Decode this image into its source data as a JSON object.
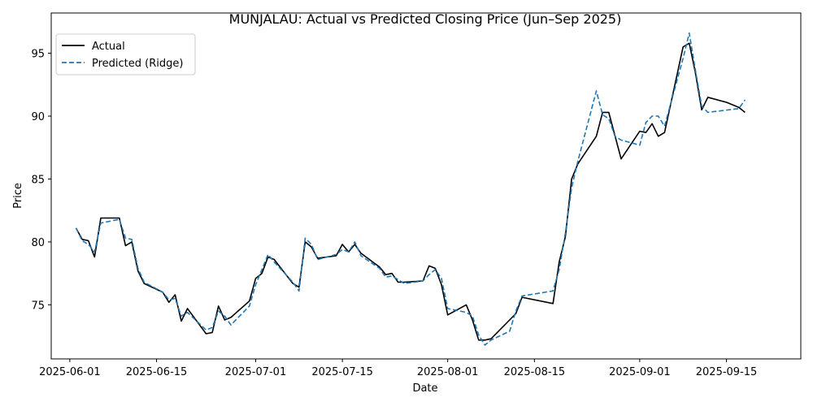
{
  "chart_data": {
    "type": "line",
    "title": "MUNJALAU: Actual vs Predicted Closing Price (Jun–Sep 2025)",
    "xlabel": "Date",
    "ylabel": "Price",
    "x_type": "date",
    "xlim": [
      "2025-05-29",
      "2025-09-27"
    ],
    "ylim": [
      70.7,
      98.2
    ],
    "x_ticks": [
      "2025-06-01",
      "2025-06-15",
      "2025-07-01",
      "2025-07-15",
      "2025-08-01",
      "2025-08-15",
      "2025-09-01",
      "2025-09-15"
    ],
    "y_ticks": [
      75,
      80,
      85,
      90,
      95
    ],
    "legend_position": "top-left",
    "grid": false,
    "series": [
      {
        "name": "Actual",
        "color": "#000000",
        "style": "solid",
        "points": [
          [
            "2025-06-02",
            81.1
          ],
          [
            "2025-06-03",
            80.2
          ],
          [
            "2025-06-04",
            80.1
          ],
          [
            "2025-06-05",
            78.8
          ],
          [
            "2025-06-06",
            81.9
          ],
          [
            "2025-06-09",
            81.9
          ],
          [
            "2025-06-10",
            79.7
          ],
          [
            "2025-06-11",
            80.0
          ],
          [
            "2025-06-12",
            77.7
          ],
          [
            "2025-06-13",
            76.7
          ],
          [
            "2025-06-16",
            76.0
          ],
          [
            "2025-06-17",
            75.2
          ],
          [
            "2025-06-18",
            75.8
          ],
          [
            "2025-06-19",
            73.7
          ],
          [
            "2025-06-20",
            74.7
          ],
          [
            "2025-06-23",
            72.7
          ],
          [
            "2025-06-24",
            72.8
          ],
          [
            "2025-06-25",
            74.9
          ],
          [
            "2025-06-26",
            73.8
          ],
          [
            "2025-06-27",
            74.0
          ],
          [
            "2025-06-30",
            75.3
          ],
          [
            "2025-07-01",
            77.1
          ],
          [
            "2025-07-02",
            77.5
          ],
          [
            "2025-07-03",
            78.8
          ],
          [
            "2025-07-04",
            78.6
          ],
          [
            "2025-07-07",
            76.7
          ],
          [
            "2025-07-08",
            76.4
          ],
          [
            "2025-07-09",
            80.0
          ],
          [
            "2025-07-10",
            79.6
          ],
          [
            "2025-07-11",
            78.7
          ],
          [
            "2025-07-14",
            78.9
          ],
          [
            "2025-07-15",
            79.8
          ],
          [
            "2025-07-16",
            79.2
          ],
          [
            "2025-07-17",
            79.8
          ],
          [
            "2025-07-18",
            79.1
          ],
          [
            "2025-07-21",
            78.0
          ],
          [
            "2025-07-22",
            77.4
          ],
          [
            "2025-07-23",
            77.5
          ],
          [
            "2025-07-24",
            76.8
          ],
          [
            "2025-07-25",
            76.8
          ],
          [
            "2025-07-28",
            76.9
          ],
          [
            "2025-07-29",
            78.1
          ],
          [
            "2025-07-30",
            77.9
          ],
          [
            "2025-07-31",
            76.6
          ],
          [
            "2025-08-01",
            74.2
          ],
          [
            "2025-08-04",
            75.0
          ],
          [
            "2025-08-05",
            73.8
          ],
          [
            "2025-08-06",
            72.2
          ],
          [
            "2025-08-07",
            72.2
          ],
          [
            "2025-08-08",
            72.3
          ],
          [
            "2025-08-11",
            73.8
          ],
          [
            "2025-08-12",
            74.3
          ],
          [
            "2025-08-13",
            75.6
          ],
          [
            "2025-08-18",
            75.1
          ],
          [
            "2025-08-19",
            78.4
          ],
          [
            "2025-08-20",
            80.4
          ],
          [
            "2025-08-21",
            85.0
          ],
          [
            "2025-08-22",
            86.2
          ],
          [
            "2025-08-25",
            88.4
          ],
          [
            "2025-08-26",
            90.3
          ],
          [
            "2025-08-27",
            90.3
          ],
          [
            "2025-08-29",
            86.6
          ],
          [
            "2025-09-01",
            88.8
          ],
          [
            "2025-09-02",
            88.7
          ],
          [
            "2025-09-03",
            89.4
          ],
          [
            "2025-09-04",
            88.4
          ],
          [
            "2025-09-05",
            88.7
          ],
          [
            "2025-09-08",
            95.5
          ],
          [
            "2025-09-09",
            95.8
          ],
          [
            "2025-09-10",
            93.4
          ],
          [
            "2025-09-11",
            90.5
          ],
          [
            "2025-09-12",
            91.5
          ],
          [
            "2025-09-15",
            91.1
          ],
          [
            "2025-09-16",
            90.9
          ],
          [
            "2025-09-17",
            90.7
          ],
          [
            "2025-09-18",
            90.3
          ]
        ]
      },
      {
        "name": "Predicted (Ridge)",
        "color": "#1f77b4",
        "style": "dashed",
        "points": [
          [
            "2025-06-02",
            81.1
          ],
          [
            "2025-06-03",
            80.1
          ],
          [
            "2025-06-04",
            79.8
          ],
          [
            "2025-06-05",
            79.2
          ],
          [
            "2025-06-06",
            81.5
          ],
          [
            "2025-06-09",
            81.8
          ],
          [
            "2025-06-10",
            80.3
          ],
          [
            "2025-06-11",
            80.2
          ],
          [
            "2025-06-12",
            77.9
          ],
          [
            "2025-06-13",
            76.8
          ],
          [
            "2025-06-16",
            76.0
          ],
          [
            "2025-06-17",
            75.4
          ],
          [
            "2025-06-18",
            75.5
          ],
          [
            "2025-06-19",
            74.1
          ],
          [
            "2025-06-20",
            74.4
          ],
          [
            "2025-06-23",
            73.0
          ],
          [
            "2025-06-24",
            73.2
          ],
          [
            "2025-06-25",
            74.5
          ],
          [
            "2025-06-26",
            74.1
          ],
          [
            "2025-06-27",
            73.4
          ],
          [
            "2025-06-30",
            74.9
          ],
          [
            "2025-07-01",
            76.6
          ],
          [
            "2025-07-02",
            77.8
          ],
          [
            "2025-07-03",
            79.0
          ],
          [
            "2025-07-04",
            78.4
          ],
          [
            "2025-07-07",
            76.8
          ],
          [
            "2025-07-08",
            76.1
          ],
          [
            "2025-07-09",
            80.3
          ],
          [
            "2025-07-10",
            79.8
          ],
          [
            "2025-07-11",
            78.6
          ],
          [
            "2025-07-14",
            79.0
          ],
          [
            "2025-07-15",
            79.4
          ],
          [
            "2025-07-16",
            79.2
          ],
          [
            "2025-07-17",
            80.0
          ],
          [
            "2025-07-18",
            78.9
          ],
          [
            "2025-07-21",
            77.9
          ],
          [
            "2025-07-22",
            77.2
          ],
          [
            "2025-07-23",
            77.3
          ],
          [
            "2025-07-24",
            77.0
          ],
          [
            "2025-07-25",
            76.7
          ],
          [
            "2025-07-28",
            76.9
          ],
          [
            "2025-07-29",
            77.4
          ],
          [
            "2025-07-30",
            77.8
          ],
          [
            "2025-07-31",
            77.1
          ],
          [
            "2025-08-01",
            74.7
          ],
          [
            "2025-08-04",
            74.4
          ],
          [
            "2025-08-05",
            74.1
          ],
          [
            "2025-08-06",
            72.6
          ],
          [
            "2025-08-07",
            71.8
          ],
          [
            "2025-08-08",
            72.2
          ],
          [
            "2025-08-11",
            72.9
          ],
          [
            "2025-08-12",
            74.5
          ],
          [
            "2025-08-13",
            75.7
          ],
          [
            "2025-08-18",
            76.1
          ],
          [
            "2025-08-19",
            77.8
          ],
          [
            "2025-08-20",
            80.7
          ],
          [
            "2025-08-21",
            84.3
          ],
          [
            "2025-08-22",
            86.4
          ],
          [
            "2025-08-25",
            92.0
          ],
          [
            "2025-08-26",
            90.1
          ],
          [
            "2025-08-27",
            89.8
          ],
          [
            "2025-08-28",
            88.4
          ],
          [
            "2025-08-29",
            88.1
          ],
          [
            "2025-09-01",
            87.7
          ],
          [
            "2025-09-02",
            89.5
          ],
          [
            "2025-09-03",
            90.0
          ],
          [
            "2025-09-04",
            90.0
          ],
          [
            "2025-09-05",
            89.2
          ],
          [
            "2025-09-08",
            94.6
          ],
          [
            "2025-09-09",
            96.6
          ],
          [
            "2025-09-10",
            93.6
          ],
          [
            "2025-09-11",
            90.8
          ],
          [
            "2025-09-12",
            90.3
          ],
          [
            "2025-09-17",
            90.6
          ],
          [
            "2025-09-18",
            91.3
          ]
        ]
      }
    ]
  }
}
